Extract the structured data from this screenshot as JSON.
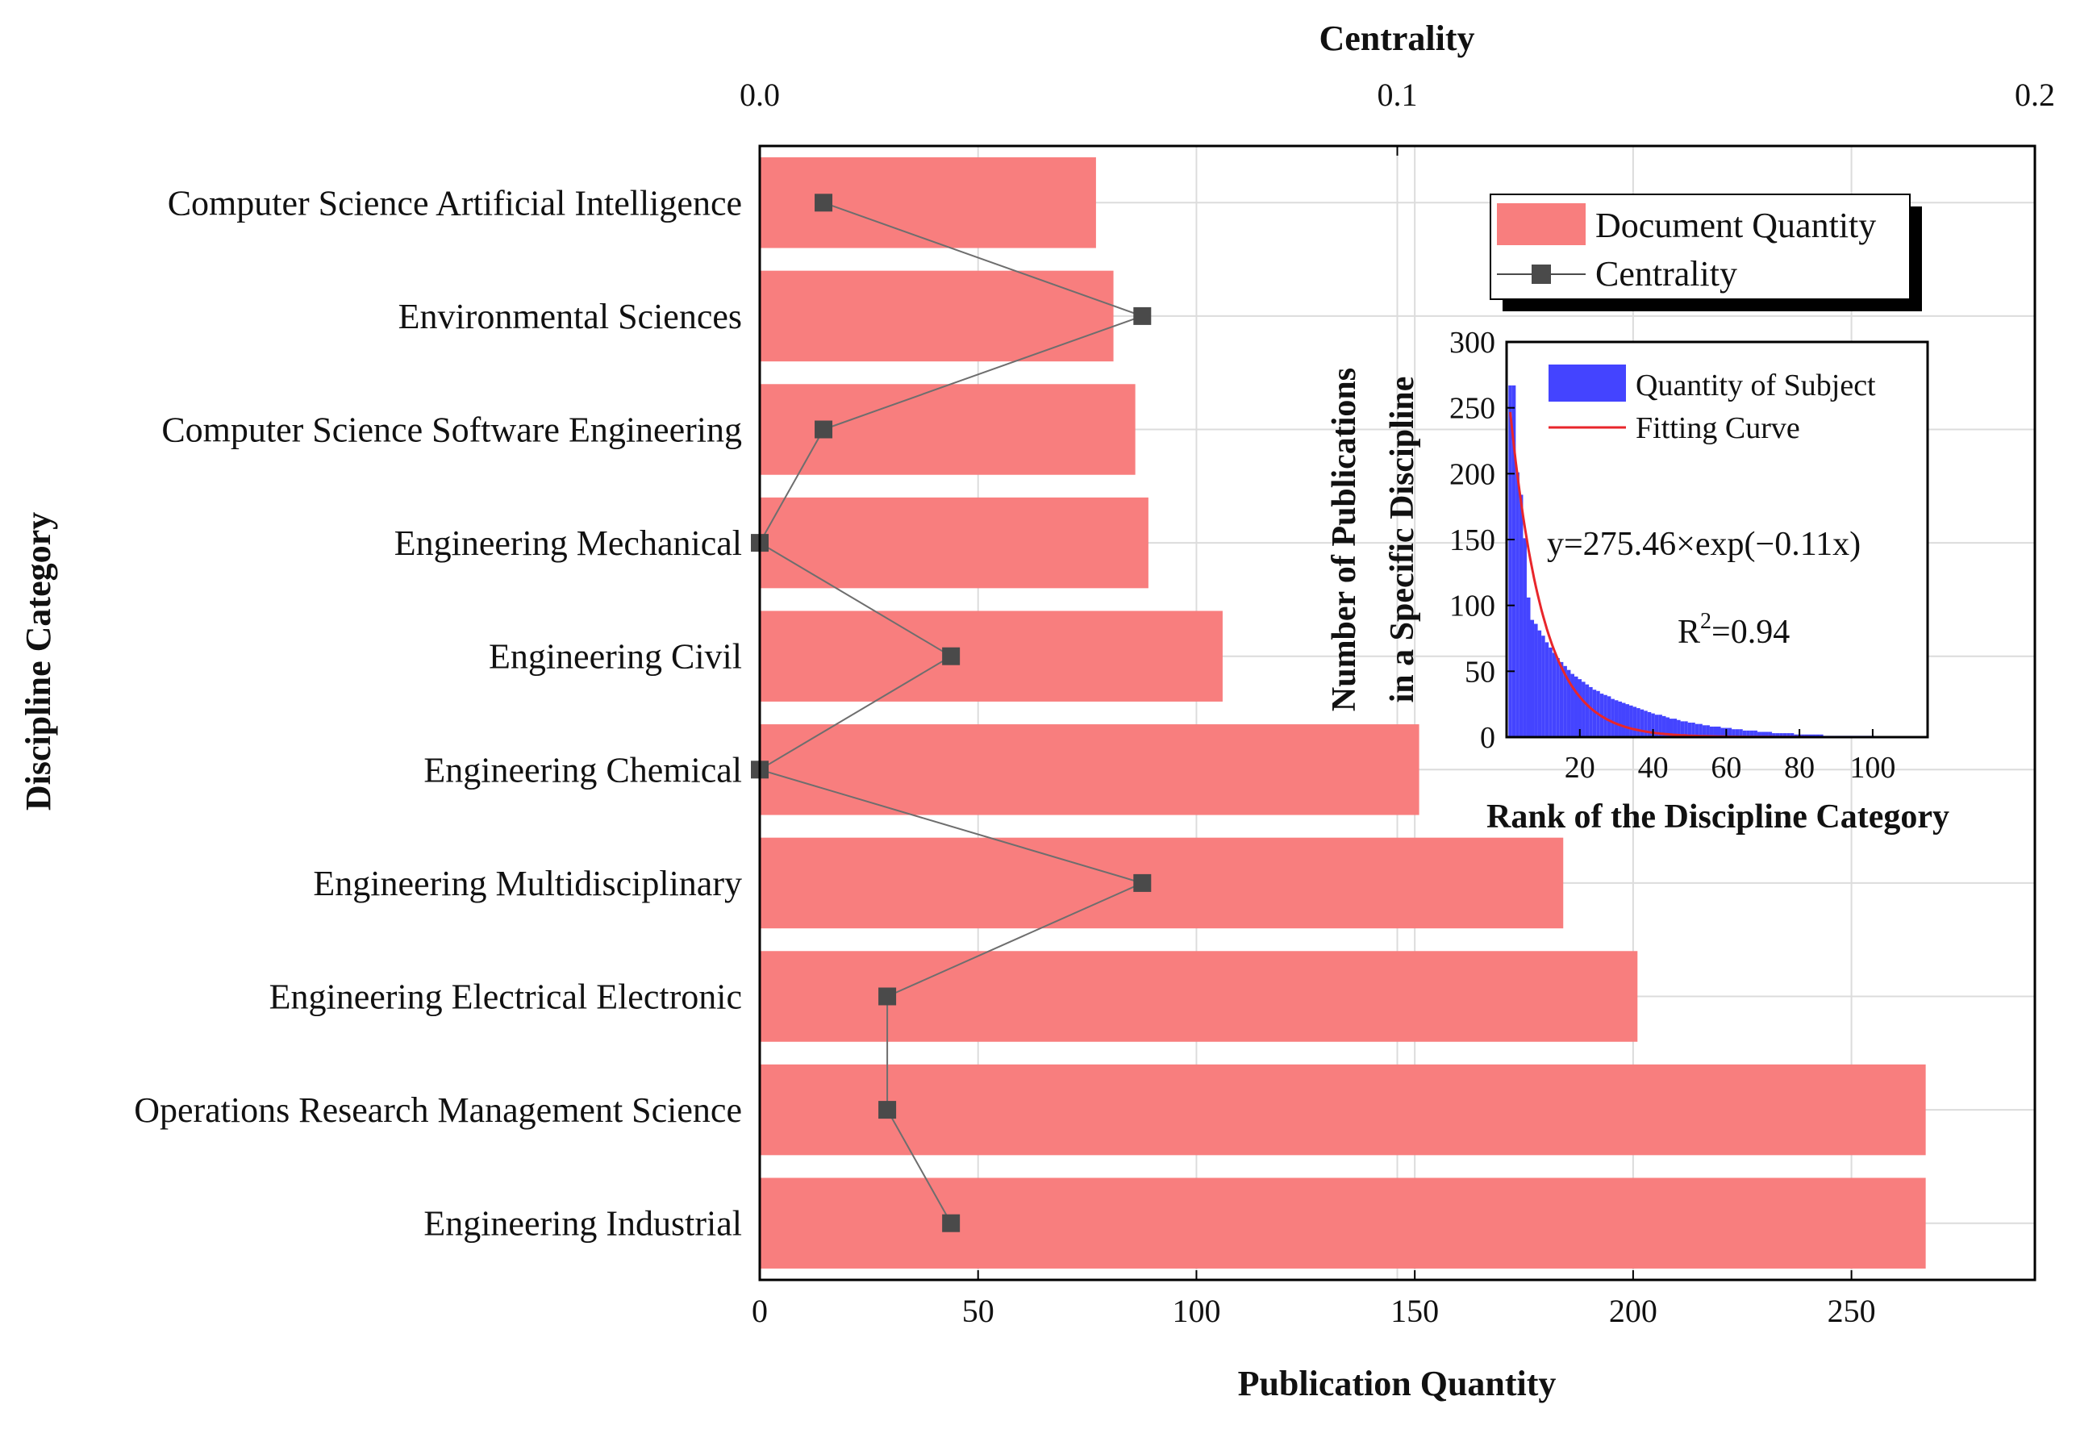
{
  "chart_data": [
    {
      "type": "bar",
      "orientation": "horizontal",
      "title": "",
      "ylabel": "Discipline Category",
      "xlabel": "Publication  Quantity",
      "x2label": "Centrality",
      "xlim": [
        0,
        292
      ],
      "x2lim": [
        0.0,
        0.2
      ],
      "xticks": [
        0,
        50,
        100,
        150,
        200,
        250
      ],
      "x2ticks": [
        {
          "value": 0.0,
          "label": "0.0"
        },
        {
          "value": 0.1,
          "label": "0.1"
        },
        {
          "value": 0.2,
          "label": "0.2"
        }
      ],
      "grid": true,
      "legend_position": "top-right",
      "categories": [
        "Computer Science Artificial Intelligence",
        "Environmental Sciences",
        "Computer Science Software Engineering",
        "Engineering Mechanical",
        "Engineering Civil",
        "Engineering Chemical",
        "Engineering Multidisciplinary",
        "Engineering Electrical Electronic",
        "Operations Research Management Science",
        "Engineering Industrial"
      ],
      "series": [
        {
          "name": "Document Quantity",
          "type": "bar",
          "axis": "bottom",
          "color": "#F87E7E",
          "values": [
            77,
            81,
            86,
            89,
            106,
            151,
            184,
            201,
            267,
            267
          ]
        },
        {
          "name": "Centrality",
          "type": "line",
          "axis": "top",
          "color": "#4A4A4A",
          "values": [
            0.01,
            0.06,
            0.01,
            0.0,
            0.03,
            0.0,
            0.06,
            0.02,
            0.02,
            0.03
          ]
        }
      ]
    },
    {
      "type": "bar",
      "inset": true,
      "xlabel": "Rank of the Discipline Category",
      "ylabel": "Number of Publications in a Specific Discipline",
      "ylabel_lines": [
        "Number of Publications",
        "in a Specific Discipline"
      ],
      "xlim": [
        0,
        115
      ],
      "ylim": [
        0,
        300
      ],
      "xticks": [
        20,
        40,
        60,
        80,
        100
      ],
      "yticks": [
        0,
        50,
        100,
        150,
        200,
        250,
        300
      ],
      "legend_position": "top-right",
      "series": [
        {
          "name": "Quantity of Subject",
          "type": "bar",
          "color": "#4444FF",
          "values": [
            267,
            267,
            201,
            184,
            151,
            106,
            89,
            86,
            81,
            77,
            72,
            68,
            64,
            60,
            57,
            54,
            51,
            48,
            46,
            44,
            42,
            40,
            38,
            36,
            35,
            33,
            32,
            31,
            29,
            28,
            27,
            26,
            25,
            24,
            23,
            22,
            21,
            20,
            19,
            18,
            17,
            17,
            16,
            15,
            14,
            14,
            13,
            12,
            12,
            11,
            11,
            10,
            10,
            9,
            9,
            8,
            8,
            8,
            7,
            7,
            7,
            6,
            6,
            6,
            5,
            5,
            5,
            5,
            4,
            4,
            4,
            4,
            3,
            3,
            3,
            3,
            3,
            3,
            2,
            2,
            2,
            2,
            2,
            2,
            2,
            2,
            1,
            1,
            1,
            1,
            1,
            1,
            1,
            1,
            1,
            1,
            1,
            1,
            1,
            1
          ]
        },
        {
          "name": "Fitting Curve",
          "type": "line",
          "color": "#E8262B",
          "formula": {
            "a": 275.46,
            "b": -0.11
          }
        }
      ],
      "annotations": {
        "equation": "y=275.46×exp(−0.11x)",
        "r2_prefix": "R",
        "r2_sup": "2",
        "r2_value": "=0.94"
      }
    }
  ]
}
